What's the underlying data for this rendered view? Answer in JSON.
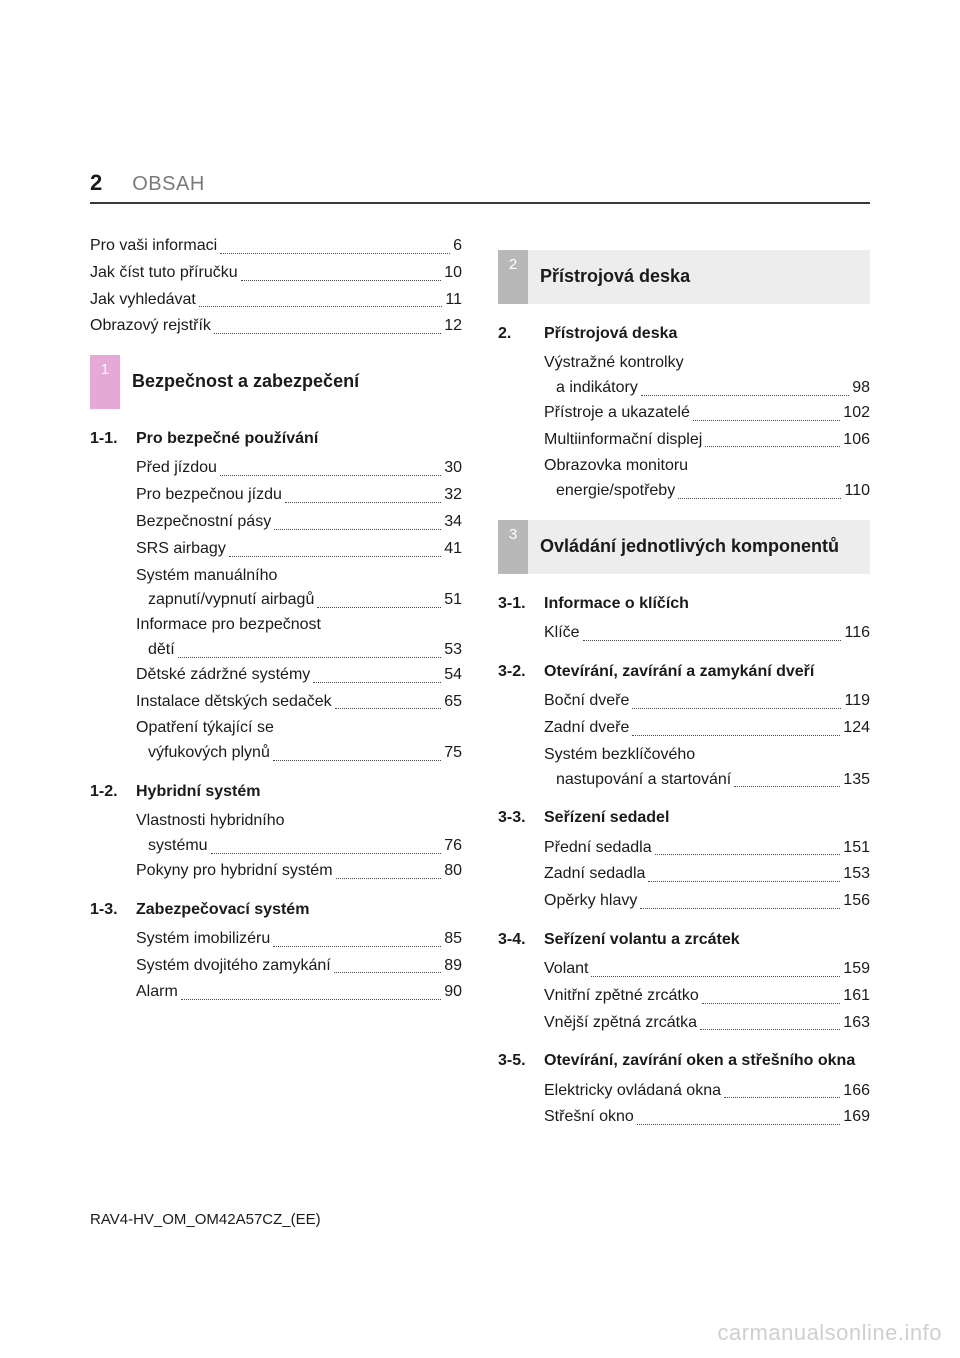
{
  "page_number": "2",
  "header_label": "OBSAH",
  "footer": "RAV4-HV_OM_OM42A57CZ_(EE)",
  "watermark": "carmanualsonline.info",
  "colors": {
    "text": "#1a1a1a",
    "muted": "#7a7a7a",
    "rule": "#3a3a3a",
    "gray_square": "#b8b8b8",
    "gray_bar": "#ededed",
    "pink_square": "#e6a8d7",
    "watermark": "#cfcfcf",
    "dot": "#4a4a4a"
  },
  "intro": [
    {
      "text": "Pro vaši informaci",
      "page": "6"
    },
    {
      "text": "Jak číst tuto příručku",
      "page": "10"
    },
    {
      "text": "Jak vyhledávat",
      "page": "11"
    },
    {
      "text": "Obrazový rejstřík",
      "page": "12"
    }
  ],
  "chapter1": {
    "num": "1",
    "title": "Bezpečnost a zabezpečení",
    "sections": [
      {
        "num": "1-1.",
        "title": "Pro bezpečné používání",
        "items": [
          {
            "text": "Před jízdou",
            "page": "30"
          },
          {
            "text": "Pro bezpečnou jízdu",
            "page": "32"
          },
          {
            "text": "Bezpečnostní pásy",
            "page": "34"
          },
          {
            "text": "SRS airbagy",
            "page": "41"
          },
          {
            "line1": "Systém manuálního",
            "line2": "zapnutí/vypnutí airbagů",
            "page": "51"
          },
          {
            "line1": "Informace pro bezpečnost",
            "line2": "dětí",
            "page": "53"
          },
          {
            "text": "Dětské zádržné systémy",
            "page": "54"
          },
          {
            "text": "Instalace dětských sedaček",
            "page": "65"
          },
          {
            "line1": "Opatření týkající se",
            "line2": "výfukových plynů",
            "page": "75"
          }
        ]
      },
      {
        "num": "1-2.",
        "title": "Hybridní systém",
        "items": [
          {
            "line1": "Vlastnosti hybridního",
            "line2": "systému",
            "page": "76"
          },
          {
            "text": "Pokyny pro hybridní systém",
            "page": "80"
          }
        ]
      },
      {
        "num": "1-3.",
        "title": "Zabezpečovací systém",
        "items": [
          {
            "text": "Systém imobilizéru",
            "page": "85"
          },
          {
            "text": "Systém dvojitého zamykání",
            "page": "89"
          },
          {
            "text": "Alarm",
            "page": "90"
          }
        ]
      }
    ]
  },
  "chapter2": {
    "num": "2",
    "title": "Přístrojová deska",
    "sections": [
      {
        "num": "2.",
        "title": "Přístrojová deska",
        "items": [
          {
            "line1": "Výstražné kontrolky",
            "line2": "a indikátory",
            "page": "98"
          },
          {
            "text": "Přístroje a ukazatelé",
            "page": "102"
          },
          {
            "text": "Multiinformační displej",
            "page": "106"
          },
          {
            "line1": "Obrazovka monitoru",
            "line2": "energie/spotřeby",
            "page": "110"
          }
        ]
      }
    ]
  },
  "chapter3": {
    "num": "3",
    "title": "Ovládání jednotlivých komponentů",
    "sections": [
      {
        "num": "3-1.",
        "title": "Informace o klíčích",
        "items": [
          {
            "text": "Klíče",
            "page": "116"
          }
        ]
      },
      {
        "num": "3-2.",
        "title": "Otevírání, zavírání a zamykání dveří",
        "items": [
          {
            "text": "Boční dveře",
            "page": "119"
          },
          {
            "text": "Zadní dveře",
            "page": "124"
          },
          {
            "line1": "Systém bezklíčového",
            "line2": "nastupování a startování",
            "page": "135"
          }
        ]
      },
      {
        "num": "3-3.",
        "title": "Seřízení sedadel",
        "items": [
          {
            "text": "Přední sedadla",
            "page": "151"
          },
          {
            "text": "Zadní sedadla",
            "page": "153"
          },
          {
            "text": "Opěrky hlavy",
            "page": "156"
          }
        ]
      },
      {
        "num": "3-4.",
        "title": "Seřízení volantu a zrcátek",
        "items": [
          {
            "text": "Volant",
            "page": "159"
          },
          {
            "text": "Vnitřní zpětné zrcátko",
            "page": "161"
          },
          {
            "text": "Vnější zpětná zrcátka",
            "page": "163"
          }
        ]
      },
      {
        "num": "3-5.",
        "title": "Otevírání, zavírání oken a střešního okna",
        "items": [
          {
            "text": "Elektricky ovládaná okna",
            "page": "166"
          },
          {
            "text": "Střešní okno",
            "page": "169"
          }
        ]
      }
    ]
  }
}
